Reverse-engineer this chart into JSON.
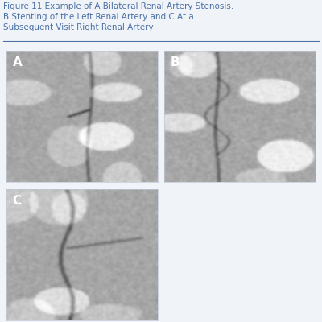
{
  "title_line1": "Figure 11 Example of A Bilateral Renal Artery Stenosis.",
  "title_line2": "B Stenting of the Left Renal Artery and C At a",
  "title_line3": "Subsequent Visit Right Renal Artery",
  "title_color": "#4a6fa5",
  "title_fontsize": 7.5,
  "background_color": "#f0f4f8",
  "panel_bg": "#a0a0a0",
  "border_color": "#c0c8d8",
  "label_color": "#ffffff",
  "label_fontsize": 11,
  "fig_width": 4.0,
  "fig_height": 4.0
}
